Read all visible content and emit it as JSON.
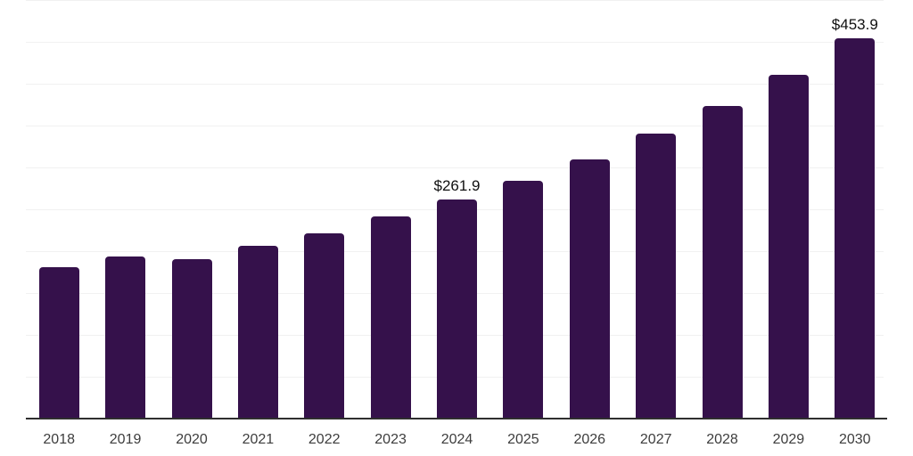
{
  "chart_data": {
    "type": "bar",
    "title": "",
    "xlabel": "",
    "ylabel": "",
    "categories": [
      "2018",
      "2019",
      "2020",
      "2021",
      "2022",
      "2023",
      "2024",
      "2025",
      "2026",
      "2027",
      "2028",
      "2029",
      "2030"
    ],
    "values": [
      181.0,
      193.5,
      190.1,
      206.6,
      221.3,
      241.5,
      261.9,
      283.9,
      310.0,
      340.4,
      373.4,
      410.9,
      453.9
    ],
    "data_labels": {
      "2024": "$261.9",
      "2030": "$453.9"
    },
    "ylim": [
      0,
      500
    ],
    "gridline_step": 50,
    "grid": "horizontal-only",
    "legend": "none",
    "y_axis_tick_labels": "none"
  },
  "colors": {
    "bar": "#35114B",
    "gridline": "#f1f1f1",
    "axis_line": "#2f2f2f",
    "year_label": "#3d3d3d",
    "value_label": "#101010",
    "background": "#ffffff"
  }
}
